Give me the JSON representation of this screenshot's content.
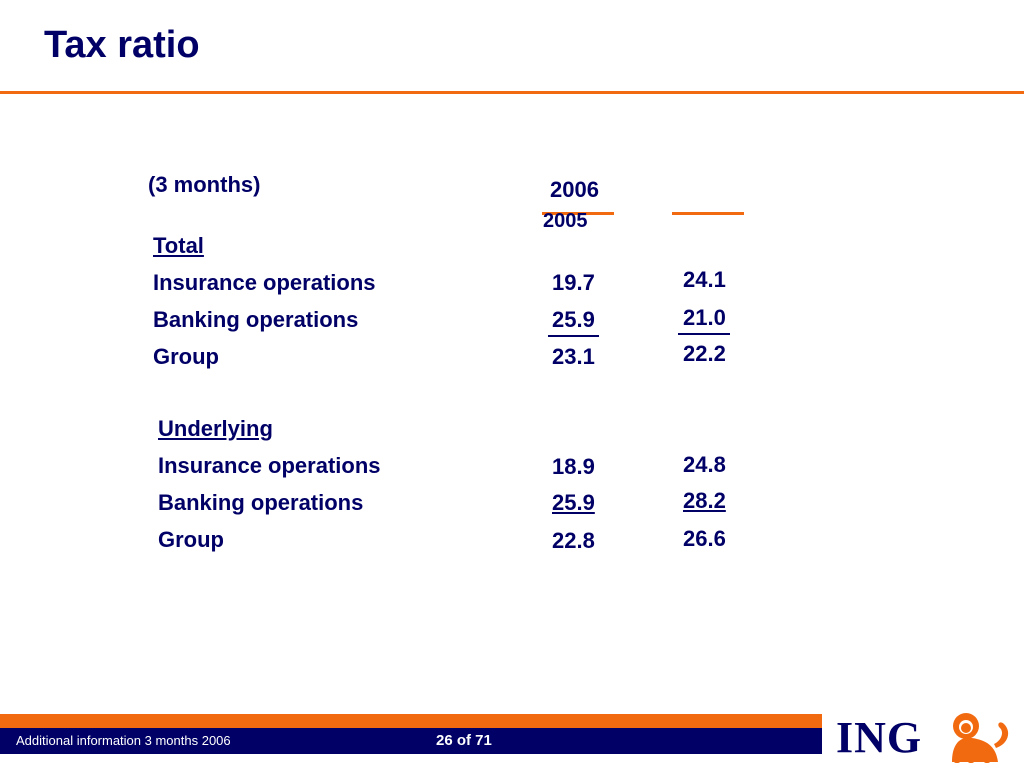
{
  "slide": {
    "title": "Tax ratio",
    "period_label": "(3 months)",
    "year_2006": "2006",
    "year_2005": "2005"
  },
  "sections": [
    {
      "heading": "Total",
      "rows": [
        {
          "label": "Insurance operations",
          "v2006": "19.7",
          "v2005": "24.1"
        },
        {
          "label": "Banking operations",
          "v2006": "25.9",
          "v2005": "21.0"
        },
        {
          "label": "Group",
          "v2006": "23.1",
          "v2005": "22.2"
        }
      ]
    },
    {
      "heading": "Underlying",
      "rows": [
        {
          "label": "Insurance operations",
          "v2006": "18.9",
          "v2005": "24.8"
        },
        {
          "label": "Banking operations",
          "v2006": "25.9",
          "v2005": "28.2"
        },
        {
          "label": "Group",
          "v2006": "22.8",
          "v2005": "26.6"
        }
      ]
    }
  ],
  "footer": {
    "left_text": "Additional information 3 months 2006",
    "page": "26 of 71"
  },
  "logo": {
    "text": "ING",
    "icon": "lion-icon"
  },
  "colors": {
    "navy": "#000066",
    "orange": "#f26a10"
  }
}
